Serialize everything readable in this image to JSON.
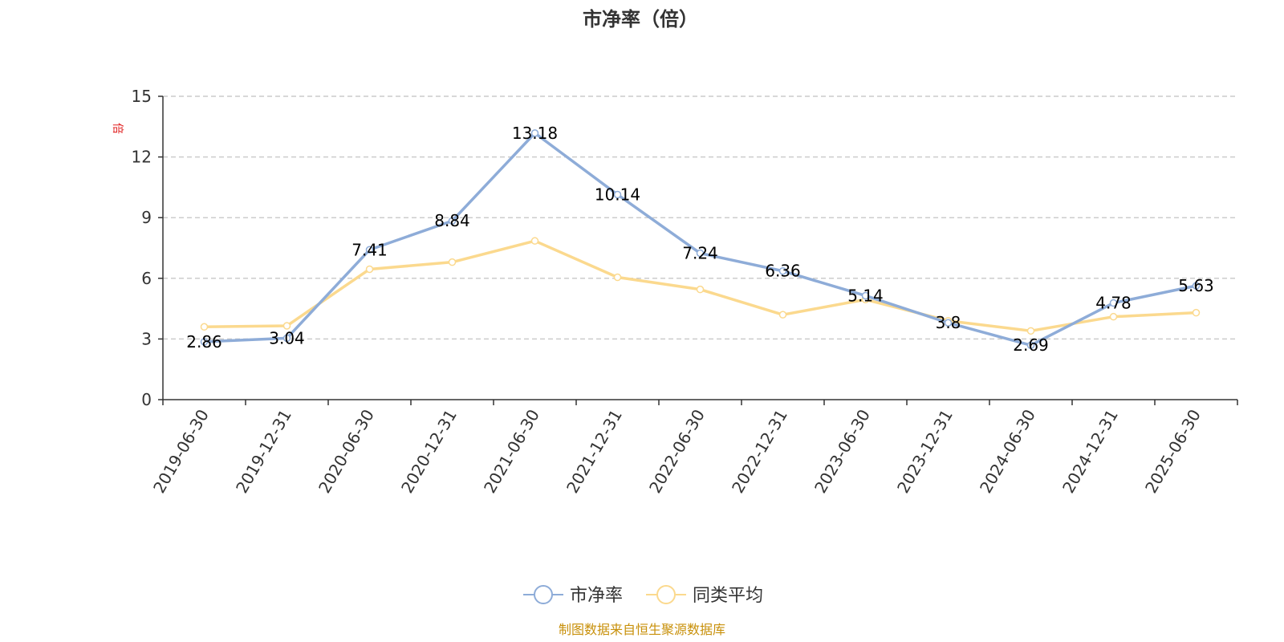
{
  "chart_data": {
    "type": "line",
    "title": "市净率（倍）",
    "ylabel": "倍",
    "xlabel": "",
    "categories": [
      "2019-06-30",
      "2019-12-31",
      "2020-06-30",
      "2020-12-31",
      "2021-06-30",
      "2021-12-31",
      "2022-06-30",
      "2022-12-31",
      "2023-06-30",
      "2023-12-31",
      "2024-06-30",
      "2024-12-31",
      "2025-06-30"
    ],
    "ylim": [
      0,
      15
    ],
    "yticks": [
      0,
      3,
      6,
      9,
      12,
      15
    ],
    "grid": true,
    "legend_position": "bottom",
    "series": [
      {
        "name": "市净率",
        "color": "#8eacd8",
        "values": [
          2.86,
          3.04,
          7.41,
          8.84,
          13.18,
          10.14,
          7.24,
          6.36,
          5.14,
          3.8,
          2.69,
          4.78,
          5.63
        ],
        "labels": [
          "2.86",
          "3.04",
          "7.41",
          "8.84",
          "13.18",
          "10.14",
          "7.24",
          "6.36",
          "5.14",
          "3.8",
          "2.69",
          "4.78",
          "5.63"
        ]
      },
      {
        "name": "同类平均",
        "color": "#fbd98e",
        "values": [
          3.6,
          3.65,
          6.45,
          6.8,
          7.85,
          6.05,
          5.45,
          4.2,
          4.95,
          3.9,
          3.4,
          4.1,
          4.3
        ]
      }
    ],
    "source": "制图数据来自恒生聚源数据库"
  }
}
